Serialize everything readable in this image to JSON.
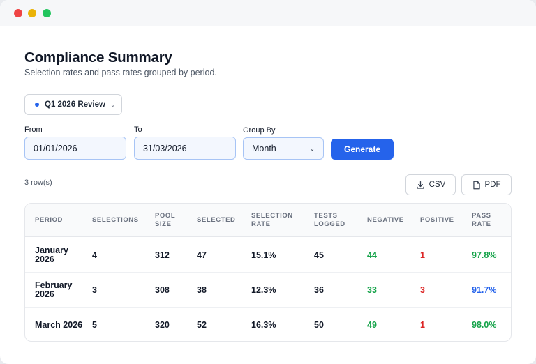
{
  "header": {
    "title": "Compliance Summary",
    "subtitle": "Selection rates and pass rates grouped by period."
  },
  "preset": {
    "label": "Q1 2026 Review",
    "chevron": "⌄"
  },
  "filters": {
    "from_label": "From",
    "from_value": "01/01/2026",
    "to_label": "To",
    "to_value": "31/03/2026",
    "group_label": "Group By",
    "group_value": "Month",
    "chevron": "⌄",
    "generate_label": "Generate"
  },
  "results": {
    "row_count": "3 row(s)",
    "csv_label": "CSV",
    "pdf_label": "PDF"
  },
  "table": {
    "headers": {
      "period": "PERIOD",
      "selections": "SELECTIONS",
      "pool_size": "POOL SIZE",
      "selected": "SELECTED",
      "selection_rate": "SELECTION RATE",
      "tests_logged": "TESTS LOGGED",
      "negative": "NEGATIVE",
      "positive": "POSITIVE",
      "pass_rate": "PASS RATE"
    },
    "rows": [
      {
        "period": "January 2026",
        "selections": "4",
        "pool_size": "312",
        "selected": "47",
        "selection_rate": "15.1%",
        "tests_logged": "45",
        "negative": "44",
        "positive": "1",
        "pass_rate": "97.8%",
        "pass_rate_color": "#16a34a"
      },
      {
        "period": "February 2026",
        "selections": "3",
        "pool_size": "308",
        "selected": "38",
        "selection_rate": "12.3%",
        "tests_logged": "36",
        "negative": "33",
        "positive": "3",
        "pass_rate": "91.7%",
        "pass_rate_color": "#2563eb"
      },
      {
        "period": "March 2026",
        "selections": "5",
        "pool_size": "320",
        "selected": "52",
        "selection_rate": "16.3%",
        "tests_logged": "50",
        "negative": "49",
        "positive": "1",
        "pass_rate": "98.0%",
        "pass_rate_color": "#16a34a"
      }
    ]
  },
  "colors": {
    "accent": "#2563eb",
    "negative": "#16a34a",
    "positive": "#dc2626"
  }
}
